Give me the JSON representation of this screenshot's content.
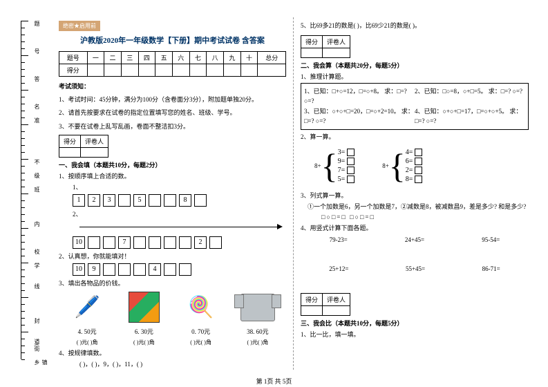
{
  "header_tag": "绝密★启用前",
  "title": "沪教版2020年一年级数学【下册】期中考试试卷 含答案",
  "score_headers": [
    "题号",
    "一",
    "二",
    "三",
    "四",
    "五",
    "六",
    "七",
    "八",
    "九",
    "十",
    "总分"
  ],
  "score_row_label": "得分",
  "instructions_title": "考试须知：",
  "instructions": [
    "1、考试时间：45分钟，满分为100分（含卷面分3分），附加题单独20分。",
    "2、请首先按要求在试卷的指定位置填写您的姓名、班级、学号。",
    "3、不要在试卷上乱写乱画，卷面不整洁扣3分。"
  ],
  "section_score_cols": [
    "得分",
    "评卷人"
  ],
  "section1": "一、我会填（本题共10分，每题2分）",
  "q1_1": "1、按顺序填上合适的数。",
  "q1_1_nums": [
    "1",
    "2",
    "3",
    "",
    "5",
    "",
    "",
    "8",
    ""
  ],
  "q1_1b_nums": [
    "10",
    "",
    "",
    "7",
    "",
    "",
    "",
    "",
    "2",
    ""
  ],
  "q1_2": "2、认真想，你就能填对！",
  "q1_2_nums": [
    "10",
    "9",
    "",
    "",
    "",
    "4",
    "",
    ""
  ],
  "q1_3": "3、填出各物品的价钱。",
  "items": [
    {
      "name": "pen",
      "price": "4. 50元",
      "emoji": "🖊️"
    },
    {
      "name": "rubik",
      "price": "6. 30元"
    },
    {
      "name": "lollipop",
      "price": "0. 70元",
      "emoji": "🍭"
    },
    {
      "name": "shirt",
      "price": "38. 60元"
    }
  ],
  "price_template": "(  )元(  )角",
  "q1_4": "4、按规律填数。",
  "q1_4_seq": "(  )，(  )，9，(  )，11，(  )",
  "col2_top": "5、比69多21的数是(     )，比69少21的数是(     )。",
  "section2": "二、我会算（本题共20分，每题5分）",
  "q2_1": "1、推理计算题。",
  "q2_1_items": [
    "1、已知：□+○=12，□=○+8。 求：□=? ○=?",
    "2、已知：□○=8，○+□=5。 求：□=? ○=?",
    "3、已知：○+○+□=20，□=○+2=10。 求：□=? ○=?",
    "4、已知：○+○+□=17，□=○+○+5。 求：□=? ○=?"
  ],
  "q2_2": "2、算一算。",
  "bracket1_num": "8+",
  "bracket1_items": [
    "3=",
    "9=",
    "7=",
    "5="
  ],
  "bracket2_num": "8+",
  "bracket2_items": [
    "4=",
    "6=",
    "2=",
    "8="
  ],
  "q2_3": "3、列式算一算。",
  "q2_3_text": "①一个加数是6，另一个加数是7，②减数是8，被减数昌9，差是多少? 和是多少?",
  "q2_3_eq": "□○□=□      □○□=□",
  "q2_4": "4、用竖式计算下面各题。",
  "eq_row1": [
    "79-23=",
    "24+45=",
    "95-54="
  ],
  "eq_row2": [
    "25+12=",
    "55+45=",
    "86-71="
  ],
  "section3": "三、我会比（本题共10分，每题5分）",
  "q3_1": "1、比一比，填一填。",
  "margin_labels": {
    "l1": "题",
    "l2": "号",
    "l3": "答",
    "l4": "名",
    "l5": "准",
    "l6": "不",
    "l7": "级",
    "l8": "班",
    "l9": "内",
    "l10": "校",
    "l11": "学",
    "l12": "线",
    "l13": "封",
    "l14": "道(街",
    "l15": "镇乡"
  },
  "footer": "第 1页 共 5页"
}
